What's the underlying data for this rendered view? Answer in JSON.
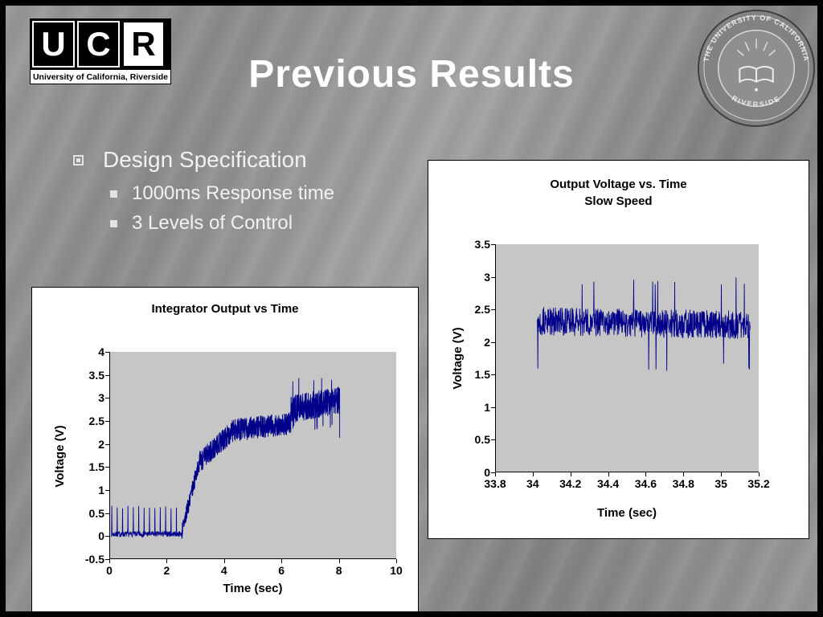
{
  "slide": {
    "title": "Previous Results"
  },
  "logo": {
    "letters": [
      "U",
      "C",
      "R"
    ],
    "caption": "University of California, Riverside"
  },
  "seal": {
    "top_text": "THE UNIVERSITY OF CALIFORNIA",
    "bottom_text": "RIVERSIDE"
  },
  "bullets": {
    "level1": "Design Specification",
    "level2": [
      "1000ms Response time",
      "3 Levels of Control"
    ]
  },
  "chart_data": [
    {
      "type": "line",
      "title": "Integrator Output vs Time",
      "xlabel": "Time (sec)",
      "ylabel": "Voltage (V)",
      "xlim": [
        0,
        10
      ],
      "ylim": [
        -0.5,
        4
      ],
      "xticks": [
        0,
        2,
        4,
        6,
        8,
        10
      ],
      "yticks": [
        -0.5,
        0,
        0.5,
        1,
        1.5,
        2,
        2.5,
        3,
        3.5,
        4
      ],
      "grid": false,
      "legend": false,
      "plot_bg": "#c6c6c6",
      "seed": 7,
      "series": [
        {
          "name": "integrator output",
          "color": "#00008b",
          "segments": [
            {
              "x0": 0.05,
              "x1": 2.5,
              "y0": 0.04,
              "y1": 0.05,
              "noise": 0.06,
              "points": 300,
              "spikes": {
                "count": 13,
                "y": 0.62
              }
            },
            {
              "x0": 2.5,
              "x1": 3.1,
              "y0": 0.1,
              "y1": 1.6,
              "noise": 0.18,
              "points": 160
            },
            {
              "x0": 3.1,
              "x1": 4.3,
              "y0": 1.6,
              "y1": 2.3,
              "noise": 0.24,
              "points": 300
            },
            {
              "x0": 4.3,
              "x1": 6.3,
              "y0": 2.3,
              "y1": 2.45,
              "noise": 0.25,
              "points": 500
            },
            {
              "x0": 6.3,
              "x1": 8.0,
              "y0": 2.75,
              "y1": 2.95,
              "noise": 0.3,
              "points": 430,
              "outliers": {
                "prob": 0.035,
                "lo": 2.3,
                "hi": 3.45
              }
            },
            {
              "x0": 8.0,
              "x1": 8.0,
              "y0": 2.15,
              "y1": 2.15,
              "noise": 0.02,
              "points": 2
            }
          ]
        }
      ]
    },
    {
      "type": "line",
      "title": "Output Voltage vs. Time",
      "subtitle": "Slow Speed",
      "xlabel": "Time (sec)",
      "ylabel": "Voltage (V)",
      "xlim": [
        33.8,
        35.2
      ],
      "ylim": [
        0,
        3.5
      ],
      "xticks": [
        33.8,
        34,
        34.2,
        34.4,
        34.6,
        34.8,
        35,
        35.2
      ],
      "yticks": [
        0,
        0.5,
        1,
        1.5,
        2,
        2.5,
        3,
        3.5
      ],
      "grid": false,
      "legend": false,
      "plot_bg": "#c6c6c6",
      "seed": 13,
      "series": [
        {
          "name": "output voltage",
          "color": "#00008b",
          "segments": [
            {
              "x0": 34.02,
              "x1": 35.15,
              "y0": 2.32,
              "y1": 2.26,
              "noise": 0.22,
              "points": 850,
              "outliers": {
                "prob": 0.013,
                "lo": 1.55,
                "hi": 3.0
              }
            }
          ]
        }
      ]
    }
  ]
}
